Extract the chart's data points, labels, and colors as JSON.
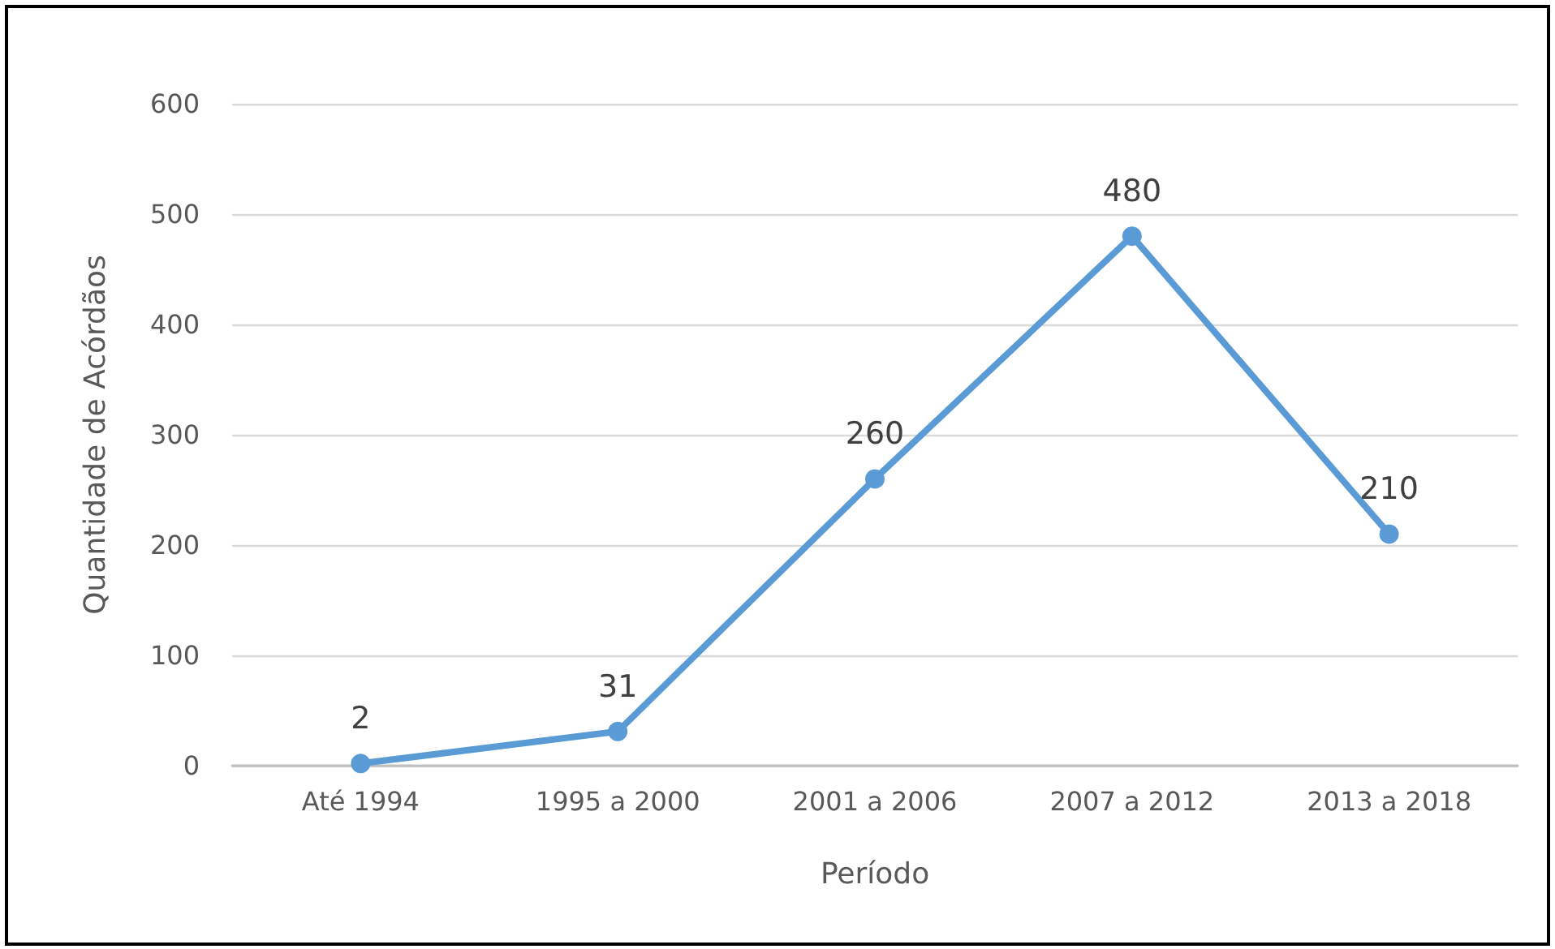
{
  "chart_data": {
    "type": "line",
    "xlabel": "Período",
    "ylabel": "Quantidade de Acórdãos",
    "categories": [
      "Até 1994",
      "1995 a 2000",
      "2001 a 2006",
      "2007 a 2012",
      "2013 a 2018"
    ],
    "series": [
      {
        "color": "#5b9bd5",
        "values": [
          2,
          31,
          260,
          480,
          210
        ]
      }
    ],
    "ylim": [
      0,
      600
    ],
    "yticks": [
      0,
      100,
      200,
      300,
      400,
      500,
      600
    ],
    "grid": "y",
    "data_labels": true,
    "marker": "circle",
    "line_style": "solid"
  }
}
